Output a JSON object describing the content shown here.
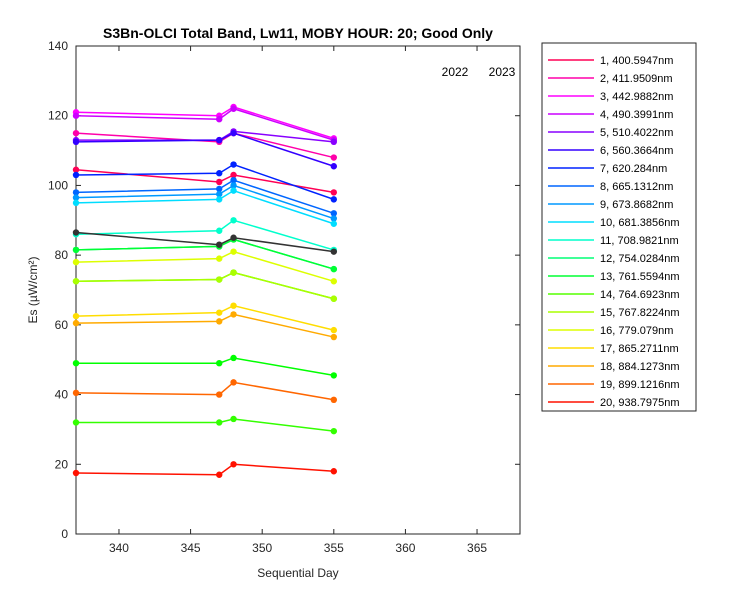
{
  "chart_data": {
    "type": "line",
    "title": "S3Bn-OLCI Total Band,  Lw11, MOBY HOUR: 20;  Good Only",
    "xlabel": "Sequential Day",
    "ylabel": "Es (µW/cm²)",
    "xlim": [
      337,
      368
    ],
    "ylim": [
      0,
      140
    ],
    "xticks": [
      340,
      345,
      350,
      355,
      360,
      365
    ],
    "yticks": [
      0,
      20,
      40,
      60,
      80,
      100,
      120,
      140
    ],
    "grid": false,
    "legend_position": "outside-right",
    "year_labels": [
      "2022",
      "2023"
    ],
    "x": [
      337,
      347,
      348,
      355
    ],
    "series": [
      {
        "name": "1, 400.5947nm",
        "color": "#ff0055",
        "values": [
          104.5,
          101.0,
          103.0,
          98.0
        ]
      },
      {
        "name": "2, 411.9509nm",
        "color": "#ff00aa",
        "values": [
          115.0,
          112.5,
          115.0,
          108.0
        ]
      },
      {
        "name": "3, 442.9882nm",
        "color": "#ff00ff",
        "values": [
          121.0,
          120.0,
          122.5,
          113.5
        ]
      },
      {
        "name": "4, 490.3991nm",
        "color": "#cc00ff",
        "values": [
          120.0,
          119.0,
          122.0,
          113.0
        ]
      },
      {
        "name": "5, 510.4022nm",
        "color": "#8800ff",
        "values": [
          113.0,
          113.0,
          115.5,
          112.5
        ]
      },
      {
        "name": "6, 560.3664nm",
        "color": "#3300ff",
        "values": [
          112.5,
          113.0,
          115.0,
          105.5
        ]
      },
      {
        "name": "7,  620.284nm",
        "color": "#0022ff",
        "values": [
          103.0,
          103.5,
          106.0,
          96.0
        ]
      },
      {
        "name": "8, 665.1312nm",
        "color": "#0066ff",
        "values": [
          98.0,
          99.0,
          101.5,
          92.0
        ]
      },
      {
        "name": "9, 673.8682nm",
        "color": "#0099ff",
        "values": [
          96.5,
          97.5,
          100.0,
          90.5
        ]
      },
      {
        "name": "10, 681.3856nm",
        "color": "#00ddff",
        "values": [
          95.0,
          96.0,
          98.5,
          89.0
        ]
      },
      {
        "name": "11, 708.9821nm",
        "color": "#00ffcc",
        "values": [
          86.0,
          87.0,
          90.0,
          81.5
        ]
      },
      {
        "name": "12, 754.0284nm",
        "color": "#00ff77",
        "values": [
          81.5,
          82.5,
          84.5,
          76.0
        ]
      },
      {
        "name": "13, 761.5594nm",
        "color": "#00ff33",
        "values": [
          81.5,
          82.5,
          84.5,
          76.0
        ]
      },
      {
        "name": "14, 764.6923nm",
        "color": "#55ff00",
        "values": [
          72.5,
          73.0,
          75.0,
          67.5
        ]
      },
      {
        "name": "15, 767.8224nm",
        "color": "#aaff00",
        "values": [
          72.5,
          73.0,
          75.0,
          67.5
        ]
      },
      {
        "name": "16,  779.079nm",
        "color": "#ddff00",
        "values": [
          78.0,
          79.0,
          81.0,
          72.5
        ]
      },
      {
        "name": "17, 865.2711nm",
        "color": "#ffdd00",
        "values": [
          62.5,
          63.5,
          65.5,
          58.5
        ]
      },
      {
        "name": "18, 884.1273nm",
        "color": "#ffaa00",
        "values": [
          60.5,
          61.0,
          63.0,
          56.5
        ]
      },
      {
        "name": "19, 899.1216nm",
        "color": "#ff6600",
        "values": [
          40.5,
          40.0,
          43.5,
          38.5
        ]
      },
      {
        "name": "20, 938.7975nm",
        "color": "#ff1100",
        "values": [
          17.5,
          17.0,
          20.0,
          18.0
        ]
      },
      {
        "name": "",
        "color": "#00ff00",
        "values": [
          49.0,
          49.0,
          50.5,
          45.5
        ]
      },
      {
        "name": "",
        "color": "#33ff00",
        "values": [
          32.0,
          32.0,
          33.0,
          29.5
        ]
      },
      {
        "name": "",
        "color": "#333333",
        "values": [
          86.5,
          83.0,
          85.0,
          81.0
        ]
      }
    ]
  }
}
